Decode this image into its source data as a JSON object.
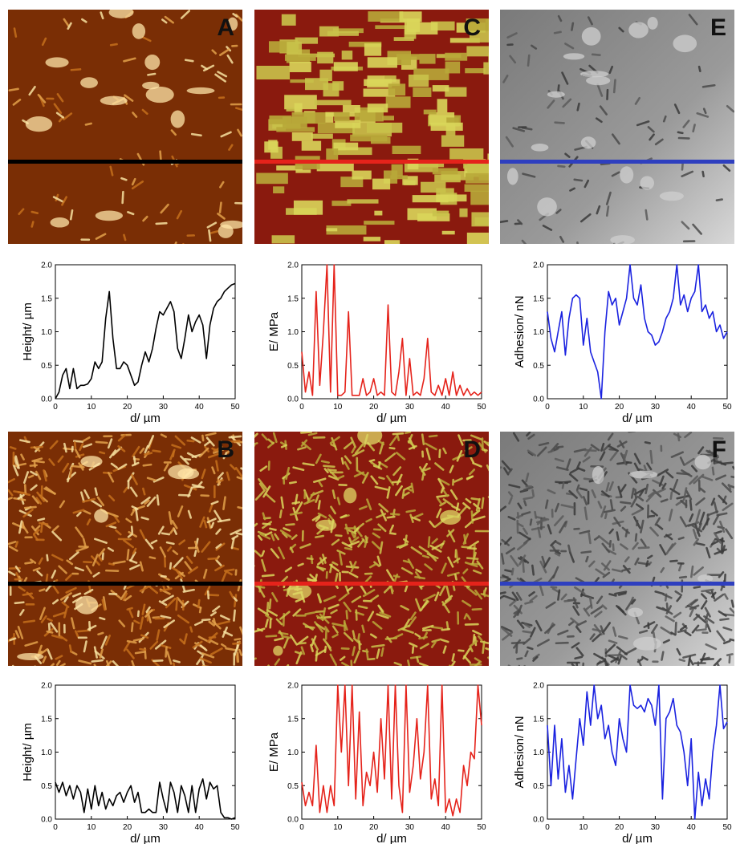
{
  "panels": [
    {
      "letter": "A",
      "style": "height",
      "density": "sparse",
      "line_color": "#000000"
    },
    {
      "letter": "C",
      "style": "modulus",
      "density": "sparse",
      "line_color": "#e5231b"
    },
    {
      "letter": "E",
      "style": "adhesion",
      "density": "sparse",
      "line_color": "#2e3fbf"
    },
    {
      "letter": "B",
      "style": "height",
      "density": "dense",
      "line_color": "#000000"
    },
    {
      "letter": "D",
      "style": "modulus",
      "density": "dense",
      "line_color": "#e5231b"
    },
    {
      "letter": "F",
      "style": "adhesion",
      "density": "dense",
      "line_color": "#2e3fbf"
    }
  ],
  "chart_data": [
    {
      "type": "line",
      "id": "height-sparse",
      "color": "#000000",
      "xlabel": "d/ µm",
      "ylabel": "Height/ µm",
      "xlim": [
        0,
        50
      ],
      "ylim": [
        0,
        2
      ],
      "xticks": [
        0,
        10,
        20,
        30,
        40,
        50
      ],
      "yticks": [
        "0.0",
        "0.5",
        "1.0",
        "1.5",
        "2.0"
      ],
      "x": [
        0,
        1,
        2,
        3,
        4,
        5,
        6,
        7,
        8,
        9,
        10,
        11,
        12,
        13,
        14,
        15,
        16,
        17,
        18,
        19,
        20,
        21,
        22,
        23,
        24,
        25,
        26,
        27,
        28,
        29,
        30,
        31,
        32,
        33,
        34,
        35,
        36,
        37,
        38,
        39,
        40,
        41,
        42,
        43,
        44,
        45,
        46,
        47,
        48,
        49,
        50
      ],
      "y": [
        0.0,
        0.1,
        0.35,
        0.45,
        0.15,
        0.45,
        0.15,
        0.2,
        0.2,
        0.22,
        0.3,
        0.55,
        0.45,
        0.55,
        1.2,
        1.6,
        0.9,
        0.45,
        0.45,
        0.55,
        0.5,
        0.35,
        0.2,
        0.25,
        0.5,
        0.7,
        0.55,
        0.75,
        1.05,
        1.3,
        1.25,
        1.35,
        1.45,
        1.3,
        0.75,
        0.6,
        0.9,
        1.25,
        1.0,
        1.15,
        1.25,
        1.1,
        0.6,
        1.1,
        1.35,
        1.45,
        1.5,
        1.6,
        1.65,
        1.7,
        1.72
      ]
    },
    {
      "type": "line",
      "id": "modulus-sparse",
      "color": "#e5231b",
      "xlabel": "d/ µm",
      "ylabel": "E/ MPa",
      "xlim": [
        0,
        50
      ],
      "ylim": [
        0,
        2
      ],
      "xticks": [
        0,
        10,
        20,
        30,
        40,
        50
      ],
      "yticks": [
        "0.0",
        "0.5",
        "1.0",
        "1.5",
        "2.0"
      ],
      "x": [
        0,
        1,
        2,
        3,
        4,
        5,
        6,
        7,
        8,
        9,
        10,
        11,
        12,
        13,
        14,
        15,
        16,
        17,
        18,
        19,
        20,
        21,
        22,
        23,
        24,
        25,
        26,
        27,
        28,
        29,
        30,
        31,
        32,
        33,
        34,
        35,
        36,
        37,
        38,
        39,
        40,
        41,
        42,
        43,
        44,
        45,
        46,
        47,
        48,
        49,
        50
      ],
      "y": [
        0.7,
        0.1,
        0.4,
        0.05,
        1.6,
        0.2,
        1.0,
        2.0,
        0.1,
        2.0,
        0.05,
        0.05,
        0.1,
        1.3,
        0.05,
        0.05,
        0.05,
        0.3,
        0.05,
        0.1,
        0.3,
        0.05,
        0.1,
        0.05,
        1.4,
        0.1,
        0.05,
        0.4,
        0.9,
        0.05,
        0.6,
        0.05,
        0.1,
        0.05,
        0.3,
        0.9,
        0.1,
        0.05,
        0.2,
        0.05,
        0.3,
        0.05,
        0.4,
        0.05,
        0.2,
        0.05,
        0.15,
        0.05,
        0.1,
        0.05,
        0.1
      ]
    },
    {
      "type": "line",
      "id": "adhesion-sparse",
      "color": "#1a22e0",
      "xlabel": "d/ µm",
      "ylabel": "Adhesion/ nN",
      "xlim": [
        0,
        50
      ],
      "ylim": [
        0,
        2
      ],
      "xticks": [
        0,
        10,
        20,
        30,
        40,
        50
      ],
      "yticks": [
        "0.0",
        "0.5",
        "1.0",
        "1.5",
        "2.0"
      ],
      "x": [
        0,
        1,
        2,
        3,
        4,
        5,
        6,
        7,
        8,
        9,
        10,
        11,
        12,
        13,
        14,
        15,
        16,
        17,
        18,
        19,
        20,
        21,
        22,
        23,
        24,
        25,
        26,
        27,
        28,
        29,
        30,
        31,
        32,
        33,
        34,
        35,
        36,
        37,
        38,
        39,
        40,
        41,
        42,
        43,
        44,
        45,
        46,
        47,
        48,
        49,
        50
      ],
      "y": [
        1.3,
        0.9,
        0.7,
        1.0,
        1.3,
        0.65,
        1.2,
        1.5,
        1.55,
        1.5,
        0.8,
        1.2,
        0.7,
        0.55,
        0.4,
        0.0,
        1.0,
        1.6,
        1.4,
        1.5,
        1.1,
        1.3,
        1.5,
        2.0,
        1.5,
        1.4,
        1.7,
        1.2,
        1.0,
        0.95,
        0.8,
        0.85,
        1.0,
        1.2,
        1.3,
        1.5,
        2.0,
        1.4,
        1.55,
        1.3,
        1.5,
        1.6,
        2.0,
        1.3,
        1.4,
        1.2,
        1.3,
        1.0,
        1.1,
        0.9,
        1.0
      ]
    },
    {
      "type": "line",
      "id": "height-dense",
      "color": "#000000",
      "xlabel": "d/ µm",
      "ylabel": "Height/ µm",
      "xlim": [
        0,
        50
      ],
      "ylim": [
        0,
        2
      ],
      "xticks": [
        0,
        10,
        20,
        30,
        40,
        50
      ],
      "yticks": [
        "0.0",
        "0.5",
        "1.0",
        "1.5",
        "2.0"
      ],
      "x": [
        0,
        1,
        2,
        3,
        4,
        5,
        6,
        7,
        8,
        9,
        10,
        11,
        12,
        13,
        14,
        15,
        16,
        17,
        18,
        19,
        20,
        21,
        22,
        23,
        24,
        25,
        26,
        27,
        28,
        29,
        30,
        31,
        32,
        33,
        34,
        35,
        36,
        37,
        38,
        39,
        40,
        41,
        42,
        43,
        44,
        45,
        46,
        47,
        48,
        49,
        50
      ],
      "y": [
        0.55,
        0.4,
        0.55,
        0.35,
        0.5,
        0.3,
        0.5,
        0.4,
        0.1,
        0.45,
        0.15,
        0.5,
        0.2,
        0.4,
        0.15,
        0.3,
        0.2,
        0.35,
        0.4,
        0.25,
        0.4,
        0.5,
        0.25,
        0.4,
        0.1,
        0.1,
        0.15,
        0.1,
        0.1,
        0.55,
        0.3,
        0.1,
        0.55,
        0.4,
        0.1,
        0.5,
        0.35,
        0.1,
        0.5,
        0.1,
        0.45,
        0.6,
        0.3,
        0.55,
        0.45,
        0.5,
        0.1,
        0.02,
        0.02,
        0.0,
        0.02
      ]
    },
    {
      "type": "line",
      "id": "modulus-dense",
      "color": "#e5231b",
      "xlabel": "d/ µm",
      "ylabel": "E/ MPa",
      "xlim": [
        0,
        50
      ],
      "ylim": [
        0,
        2
      ],
      "xticks": [
        0,
        10,
        20,
        30,
        40,
        50
      ],
      "yticks": [
        "0.0",
        "0.5",
        "1.0",
        "1.5",
        "2.0"
      ],
      "x": [
        0,
        1,
        2,
        3,
        4,
        5,
        6,
        7,
        8,
        9,
        10,
        11,
        12,
        13,
        14,
        15,
        16,
        17,
        18,
        19,
        20,
        21,
        22,
        23,
        24,
        25,
        26,
        27,
        28,
        29,
        30,
        31,
        32,
        33,
        34,
        35,
        36,
        37,
        38,
        39,
        40,
        41,
        42,
        43,
        44,
        45,
        46,
        47,
        48,
        49,
        50
      ],
      "y": [
        0.55,
        0.2,
        0.4,
        0.2,
        1.1,
        0.1,
        0.5,
        0.1,
        0.5,
        0.2,
        2.0,
        1.0,
        2.0,
        0.5,
        2.0,
        0.3,
        1.6,
        0.2,
        0.7,
        0.5,
        1.0,
        0.4,
        1.5,
        0.6,
        2.0,
        0.3,
        2.0,
        0.5,
        0.1,
        2.0,
        0.4,
        0.8,
        1.5,
        0.6,
        1.0,
        2.0,
        0.3,
        0.6,
        0.2,
        2.0,
        0.1,
        0.3,
        0.05,
        0.3,
        0.1,
        0.8,
        0.5,
        1.0,
        0.9,
        2.0,
        1.4
      ]
    },
    {
      "type": "line",
      "id": "adhesion-dense",
      "color": "#1a22e0",
      "xlabel": "d/ µm",
      "ylabel": "Adhesion/ nN",
      "xlim": [
        0,
        50
      ],
      "ylim": [
        0,
        2
      ],
      "xticks": [
        0,
        10,
        20,
        30,
        40,
        50
      ],
      "yticks": [
        "0.0",
        "0.5",
        "1.0",
        "1.5",
        "2.0"
      ],
      "x": [
        0,
        1,
        2,
        3,
        4,
        5,
        6,
        7,
        8,
        9,
        10,
        11,
        12,
        13,
        14,
        15,
        16,
        17,
        18,
        19,
        20,
        21,
        22,
        23,
        24,
        25,
        26,
        27,
        28,
        29,
        30,
        31,
        32,
        33,
        34,
        35,
        36,
        37,
        38,
        39,
        40,
        41,
        42,
        43,
        44,
        45,
        46,
        47,
        48,
        49,
        50
      ],
      "y": [
        1.4,
        0.5,
        1.4,
        0.6,
        1.2,
        0.4,
        0.8,
        0.3,
        0.9,
        1.5,
        1.1,
        1.9,
        1.4,
        2.0,
        1.5,
        1.7,
        1.2,
        1.4,
        1.0,
        0.8,
        1.5,
        1.2,
        1.0,
        2.0,
        1.7,
        1.65,
        1.7,
        1.6,
        1.8,
        1.7,
        1.4,
        2.0,
        0.3,
        1.5,
        1.6,
        1.8,
        1.4,
        1.3,
        1.0,
        0.5,
        1.2,
        0.0,
        0.7,
        0.2,
        0.6,
        0.3,
        1.0,
        1.4,
        2.0,
        1.35,
        1.45
      ]
    }
  ]
}
